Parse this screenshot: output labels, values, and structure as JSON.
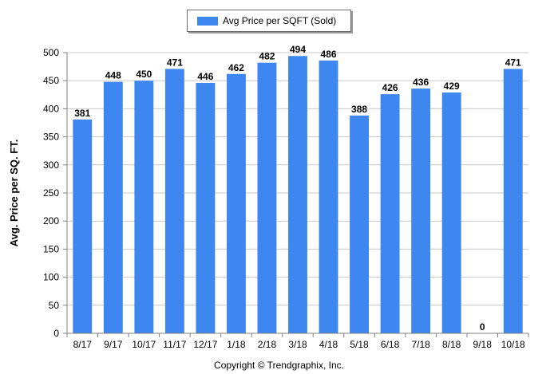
{
  "chart_data": {
    "type": "bar",
    "categories": [
      "8/17",
      "9/17",
      "10/17",
      "11/17",
      "12/17",
      "1/18",
      "2/18",
      "3/18",
      "4/18",
      "5/18",
      "6/18",
      "7/18",
      "8/18",
      "9/18",
      "10/18"
    ],
    "series": [
      {
        "name": "Avg Price per SQFT (Sold)",
        "values": [
          381,
          448,
          450,
          471,
          446,
          462,
          482,
          494,
          486,
          388,
          426,
          436,
          429,
          0,
          471
        ],
        "color": "#3f87f0"
      }
    ],
    "data_labels": [
      "381",
      "448",
      "450",
      "471",
      "446",
      "462",
      "482",
      "494",
      "486",
      "388",
      "426",
      "436",
      "429",
      "0",
      "471"
    ],
    "ylabel": "Avg. Price per SQ. FT.",
    "xlabel": "",
    "ylim": [
      0,
      500
    ],
    "yticks": [
      0,
      50,
      100,
      150,
      200,
      250,
      300,
      350,
      400,
      450,
      500
    ],
    "grid": true,
    "legend_position": "top-center"
  },
  "footer": {
    "credit": "Copyright © Trendgraphix, Inc."
  }
}
